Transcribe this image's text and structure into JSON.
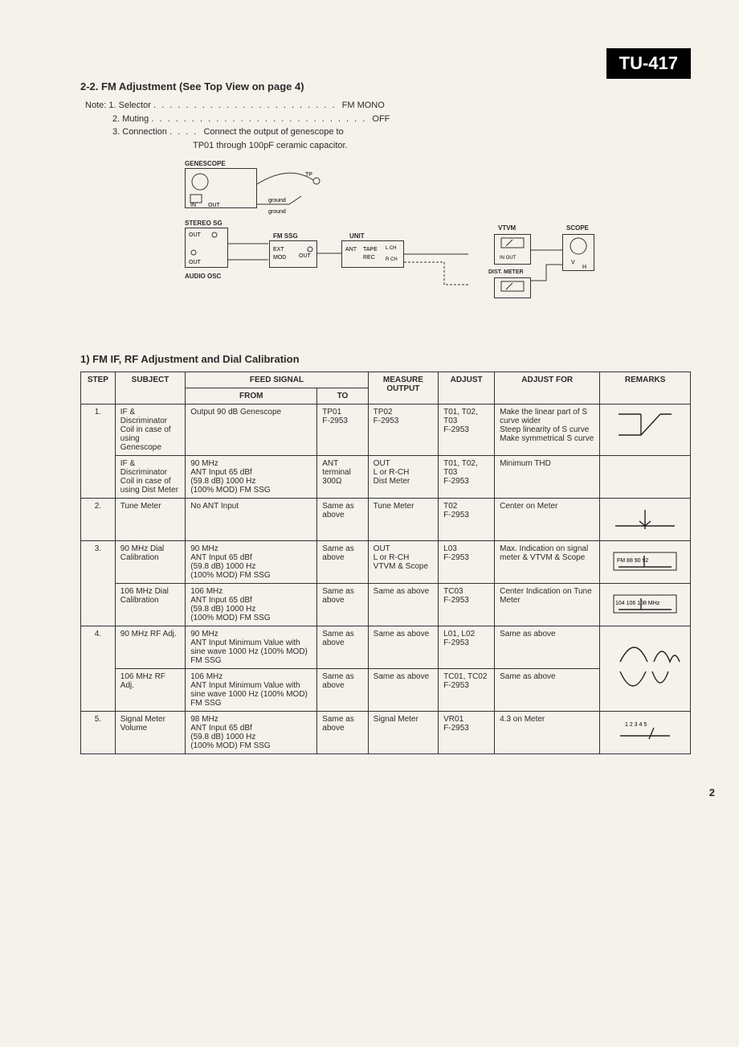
{
  "model": "TU-417",
  "section_title": "2-2. FM Adjustment (See Top View on page 4)",
  "notes_label": "Note:",
  "notes": [
    {
      "n": "1.",
      "key": "Selector",
      "dots": ". . . . . . . . . . . . . . . . . . . . . . .",
      "val": "FM MONO"
    },
    {
      "n": "2.",
      "key": "Muting",
      "dots": ". . . . . . . . . . . . . . . . . . . . . . . . . . .",
      "val": "OFF"
    },
    {
      "n": "3.",
      "key": "Connection",
      "dots": ". . . .",
      "val": "Connect the output of genescope to"
    }
  ],
  "note3_line2": "TP01 through 100pF ceramic capacitor.",
  "diagram_labels": {
    "genescope": "GENESCOPE",
    "in": "IN",
    "out": "OUT",
    "ground": "ground",
    "tp": "TP",
    "stereo_sg": "STEREO SG",
    "outc": "OUT",
    "fm_ssg": "FM SSG",
    "ext": "EXT",
    "mod": "MOD",
    "unit": "UNIT",
    "ant": "ANT",
    "tape": "TAPE",
    "rec": "REC",
    "lch": "L CH",
    "rch": "R CH",
    "audio_osc": "AUDIO OSC",
    "vtvm": "VTVM",
    "inout": "IN OUT",
    "dist_meter": "DIST. METER",
    "scope": "SCOPE",
    "v": "V",
    "h": "H"
  },
  "table_title": "1) FM IF, RF Adjustment and Dial Calibration",
  "headers": {
    "step": "STEP",
    "subject": "SUBJECT",
    "feed": "FEED SIGNAL",
    "from": "FROM",
    "to": "TO",
    "measure": "MEASURE OUTPUT",
    "adjust": "ADJUST",
    "adjust_for": "ADJUST FOR",
    "remarks": "REMARKS"
  },
  "rows": [
    {
      "step": "1.",
      "subrows": [
        {
          "subject": "IF & Discriminator Coil in case of using Genescope",
          "from": "Output 90 dB Genescope",
          "to": "TP01\nF-2953",
          "measure": "TP02\nF-2953",
          "adjust": "T01, T02, T03\nF-2953",
          "adjust_for": "Make the linear part of S curve wider\nSteep linearity of S curve\nMake symmetrical S curve",
          "remark_svg": "scurve"
        },
        {
          "subject": "IF & Discriminator Coil in case of using Dist Meter",
          "from": "90 MHz\nANT Input 65 dBf\n(59.8 dB) 1000 Hz\n(100% MOD) FM SSG",
          "to": "ANT terminal 300Ω",
          "measure": "OUT\nL or R-CH\nDist Meter",
          "adjust": "T01, T02, T03\nF-2953",
          "adjust_for": "Minimum THD",
          "remark_svg": ""
        }
      ]
    },
    {
      "step": "2.",
      "subrows": [
        {
          "subject": "Tune Meter",
          "from": "No ANT Input",
          "to": "Same as above",
          "measure": "Tune Meter",
          "adjust": "T02\nF-2953",
          "adjust_for": "Center on Meter",
          "remark_svg": "centermeter"
        }
      ]
    },
    {
      "step": "3.",
      "subrows": [
        {
          "subject": "90 MHz Dial Calibration",
          "from": "90 MHz\nANT Input 65 dBf\n(59.8 dB) 1000 Hz\n(100% MOD) FM SSG",
          "to": "Same as above",
          "measure": "OUT\nL or R-CH\nVTVM & Scope",
          "adjust": "L03\nF-2953",
          "adjust_for": "Max. Indication on signal meter & VTVM & Scope",
          "remark_svg": "dial90"
        },
        {
          "subject": "106 MHz Dial Calibration",
          "from": "106 MHz\nANT Input 65 dBf\n(59.8 dB) 1000 Hz\n(100% MOD) FM SSG",
          "to": "Same as above",
          "measure": "Same as above",
          "adjust": "TC03\nF-2953",
          "adjust_for": "Center Indication on Tune Meter",
          "remark_svg": "dial106"
        }
      ]
    },
    {
      "step": "4.",
      "subrows": [
        {
          "subject": "90 MHz RF Adj.",
          "from": "90 MHz\nANT Input Minimum Value with sine wave 1000 Hz (100% MOD)\nFM SSG",
          "to": "Same as above",
          "measure": "Same as above",
          "adjust": "L01, L02\nF-2953",
          "adjust_for": "Same as above",
          "remark_svg": "rftop"
        },
        {
          "subject": "106 MHz RF Adj.",
          "from": "106 MHz\nANT Input Minimum Value with sine wave 1000 Hz (100% MOD)\nFM SSG",
          "to": "Same as above",
          "measure": "Same as above",
          "adjust": "TC01, TC02\nF-2953",
          "adjust_for": "Same as above",
          "remark_svg": "rfbot"
        }
      ]
    },
    {
      "step": "5.",
      "subrows": [
        {
          "subject": "Signal Meter Volume",
          "from": "98 MHz\nANT Input 65 dBf\n(59.8 dB) 1000 Hz\n(100% MOD) FM SSG",
          "to": "Same as above",
          "measure": "Signal Meter",
          "adjust": "VR01\nF-2953",
          "adjust_for": "4.3 on Meter",
          "remark_svg": "sigmeter"
        }
      ]
    }
  ],
  "page": "2",
  "colors": {
    "bg": "#f5f2eb",
    "fg": "#2a2a2a",
    "black": "#000000"
  }
}
